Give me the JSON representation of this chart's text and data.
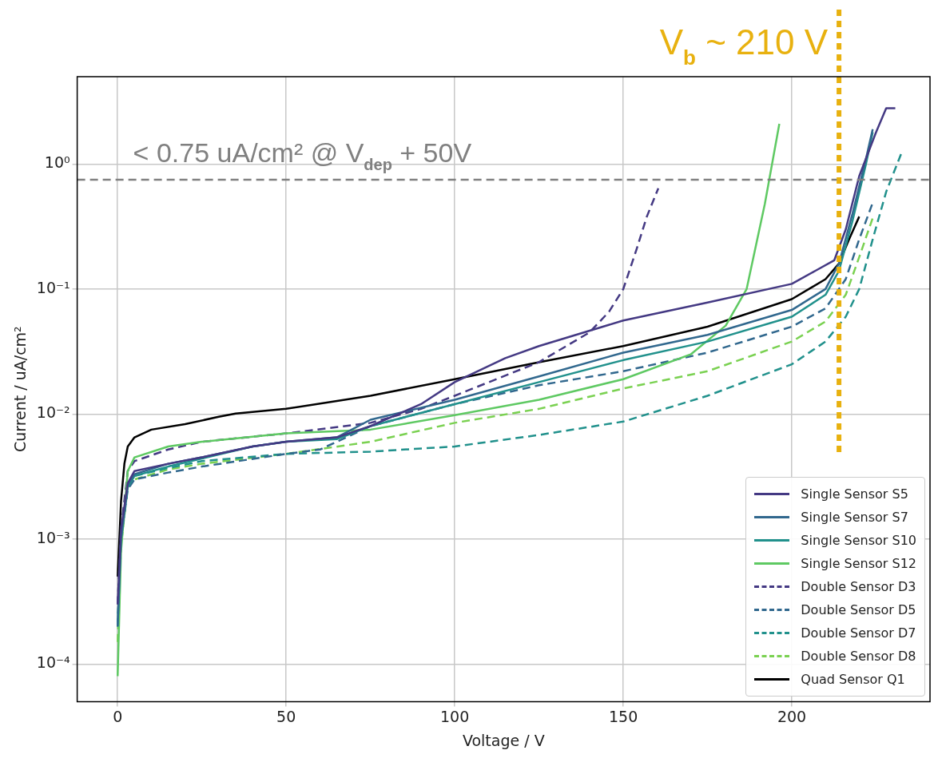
{
  "chart_data": {
    "type": "line",
    "xlabel": "Voltage / V",
    "ylabel": "Current / uA/cm²",
    "log": "y",
    "grid": true,
    "legend": "bottom right",
    "xlim": [
      -12,
      241
    ],
    "xticks": [
      0,
      50,
      100,
      150,
      200
    ],
    "ylim": [
      5e-05,
      5
    ],
    "yticks": [
      {
        "value": 0.0001,
        "label": "10⁻⁴"
      },
      {
        "value": 0.001,
        "label": "10⁻³"
      },
      {
        "value": 0.01,
        "label": "10⁻²"
      },
      {
        "value": 0.1,
        "label": "10⁻¹"
      },
      {
        "value": 1,
        "label": "10⁰"
      }
    ],
    "ref_lines": [
      {
        "axis": "y",
        "value": 0.75,
        "label": "< 0.75 uA/cm² @ V$_{dep}$ + 50V",
        "color": "#808080",
        "line_style": "dashed"
      },
      {
        "axis": "x",
        "value": 214,
        "label": "V$_{b}$ ~ 210 V",
        "color": "#e8b10f",
        "line_style": "dotted"
      }
    ],
    "series": [
      {
        "name": "Single Sensor S5",
        "color": "#443983",
        "line_style": "solid",
        "x": [
          0,
          1,
          3,
          5,
          15,
          25,
          40,
          50,
          65,
          75,
          90,
          100,
          115,
          125,
          150,
          175,
          200,
          207,
          212.6,
          216,
          220,
          225,
          228,
          230.7
        ],
        "values": [
          0.0003,
          0.0012,
          0.0028,
          0.0035,
          0.004,
          0.0045,
          0.0055,
          0.006,
          0.0065,
          0.008,
          0.012,
          0.018,
          0.028,
          0.035,
          0.056,
          0.078,
          0.11,
          0.14,
          0.17,
          0.3,
          0.8,
          1.8,
          2.8,
          2.8
        ]
      },
      {
        "name": "Single Sensor S7",
        "color": "#31688e",
        "line_style": "solid",
        "x": [
          0,
          1,
          3,
          5,
          15,
          25,
          40,
          50,
          65,
          75,
          100,
          125,
          150,
          175,
          200,
          210,
          214,
          218,
          222,
          224
        ],
        "values": [
          0.0002,
          0.001,
          0.0027,
          0.0033,
          0.004,
          0.0045,
          0.0055,
          0.006,
          0.0065,
          0.009,
          0.013,
          0.02,
          0.031,
          0.043,
          0.068,
          0.1,
          0.16,
          0.4,
          1.1,
          1.9
        ]
      },
      {
        "name": "Single Sensor S10",
        "color": "#21918c",
        "line_style": "solid",
        "x": [
          0,
          1,
          3,
          5,
          15,
          25,
          40,
          50,
          65,
          75,
          100,
          125,
          150,
          175,
          200,
          210,
          214,
          218,
          222,
          224
        ],
        "values": [
          0.0002,
          0.001,
          0.0026,
          0.0032,
          0.0038,
          0.0044,
          0.0055,
          0.006,
          0.0063,
          0.008,
          0.012,
          0.018,
          0.027,
          0.038,
          0.06,
          0.09,
          0.14,
          0.35,
          1,
          1.8
        ]
      },
      {
        "name": "Single Sensor S12",
        "color": "#5ec962",
        "line_style": "solid",
        "x": [
          0,
          1,
          3,
          5,
          15,
          25,
          50,
          75,
          100,
          125,
          150,
          170,
          180.4,
          186.6,
          192,
          196.3
        ],
        "values": [
          8e-05,
          0.0008,
          0.0035,
          0.0045,
          0.0055,
          0.006,
          0.007,
          0.0075,
          0.0098,
          0.013,
          0.019,
          0.03,
          0.051,
          0.1,
          0.48,
          2.1
        ]
      },
      {
        "name": "Double Sensor D3",
        "color": "#443983",
        "line_style": "dashed",
        "x": [
          0,
          1,
          3,
          5,
          15,
          25,
          50,
          75,
          90,
          100,
          125,
          140,
          145.8,
          150,
          154,
          157,
          160.4
        ],
        "values": [
          0.0003,
          0.0012,
          0.0035,
          0.0042,
          0.0052,
          0.006,
          0.007,
          0.0085,
          0.011,
          0.014,
          0.026,
          0.045,
          0.066,
          0.1,
          0.21,
          0.38,
          0.64
        ]
      },
      {
        "name": "Double Sensor D5",
        "color": "#31688e",
        "line_style": "dashed",
        "x": [
          0,
          1,
          3,
          5,
          15,
          25,
          50,
          60,
          65,
          75,
          100,
          125,
          150,
          175,
          200,
          210,
          216,
          220,
          224
        ],
        "values": [
          0.0002,
          0.001,
          0.0025,
          0.003,
          0.0034,
          0.0038,
          0.0048,
          0.0052,
          0.006,
          0.008,
          0.012,
          0.017,
          0.022,
          0.031,
          0.05,
          0.07,
          0.12,
          0.25,
          0.49
        ]
      },
      {
        "name": "Double Sensor D7",
        "color": "#21918c",
        "line_style": "dashed",
        "x": [
          0,
          1,
          3,
          5,
          15,
          25,
          50,
          75,
          100,
          125,
          150,
          175,
          200,
          210,
          216,
          220,
          224,
          228,
          232.4
        ],
        "values": [
          0.0002,
          0.001,
          0.0027,
          0.0032,
          0.0037,
          0.0042,
          0.0048,
          0.005,
          0.0055,
          0.0068,
          0.0087,
          0.014,
          0.025,
          0.038,
          0.06,
          0.1,
          0.25,
          0.6,
          1.2
        ]
      },
      {
        "name": "Double Sensor D8",
        "color": "#7ad151",
        "line_style": "dashed",
        "x": [
          0,
          1,
          3,
          5,
          15,
          25,
          50,
          75,
          100,
          125,
          150,
          175,
          200,
          210,
          216,
          220,
          224
        ],
        "values": [
          0.00015,
          0.0009,
          0.0026,
          0.003,
          0.0036,
          0.004,
          0.0048,
          0.006,
          0.0085,
          0.011,
          0.016,
          0.022,
          0.038,
          0.055,
          0.09,
          0.18,
          0.37
        ]
      },
      {
        "name": "Quad Sensor Q1",
        "color": "#000000",
        "line_style": "solid",
        "x": [
          0,
          1,
          2,
          3,
          5,
          10,
          20,
          30,
          35,
          50,
          75,
          100,
          125,
          150,
          175,
          200,
          210,
          214,
          217,
          220
        ],
        "values": [
          0.0005,
          0.002,
          0.004,
          0.0055,
          0.0065,
          0.0075,
          0.0083,
          0.0095,
          0.0101,
          0.011,
          0.014,
          0.019,
          0.026,
          0.035,
          0.05,
          0.083,
          0.12,
          0.16,
          0.25,
          0.38
        ]
      }
    ]
  }
}
